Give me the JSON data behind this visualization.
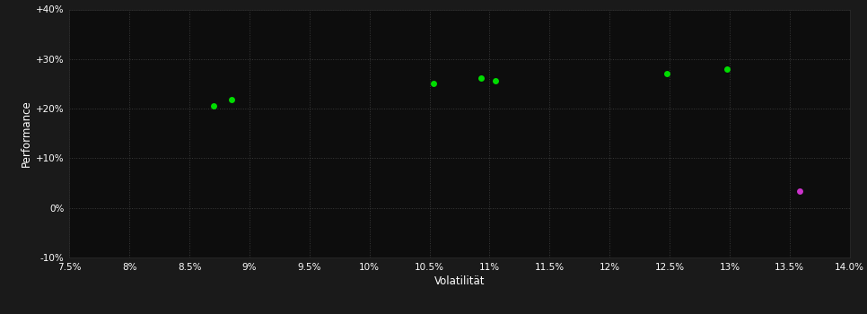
{
  "background_color": "#1a1a1a",
  "plot_bg_color": "#0d0d0d",
  "grid_color": "#3a3a3a",
  "text_color": "#ffffff",
  "xlabel": "Volatilität",
  "ylabel": "Performance",
  "xlim": [
    0.075,
    0.14
  ],
  "ylim": [
    -0.1,
    0.4
  ],
  "xticks": [
    0.075,
    0.08,
    0.085,
    0.09,
    0.095,
    0.1,
    0.105,
    0.11,
    0.115,
    0.12,
    0.125,
    0.13,
    0.135,
    0.14
  ],
  "yticks": [
    -0.1,
    0.0,
    0.1,
    0.2,
    0.3,
    0.4
  ],
  "ytick_labels": [
    "-10%",
    "0%",
    "+10%",
    "+20%",
    "+30%",
    "+40%"
  ],
  "green_points": [
    [
      0.087,
      0.205
    ],
    [
      0.0885,
      0.219
    ],
    [
      0.1053,
      0.251
    ],
    [
      0.1093,
      0.261
    ],
    [
      0.1105,
      0.256
    ],
    [
      0.1248,
      0.27
    ],
    [
      0.1298,
      0.279
    ]
  ],
  "magenta_points": [
    [
      0.1358,
      0.033
    ]
  ],
  "green_color": "#00dd00",
  "magenta_color": "#cc33cc",
  "marker_size": 5,
  "figsize": [
    9.66,
    3.5
  ],
  "dpi": 100
}
